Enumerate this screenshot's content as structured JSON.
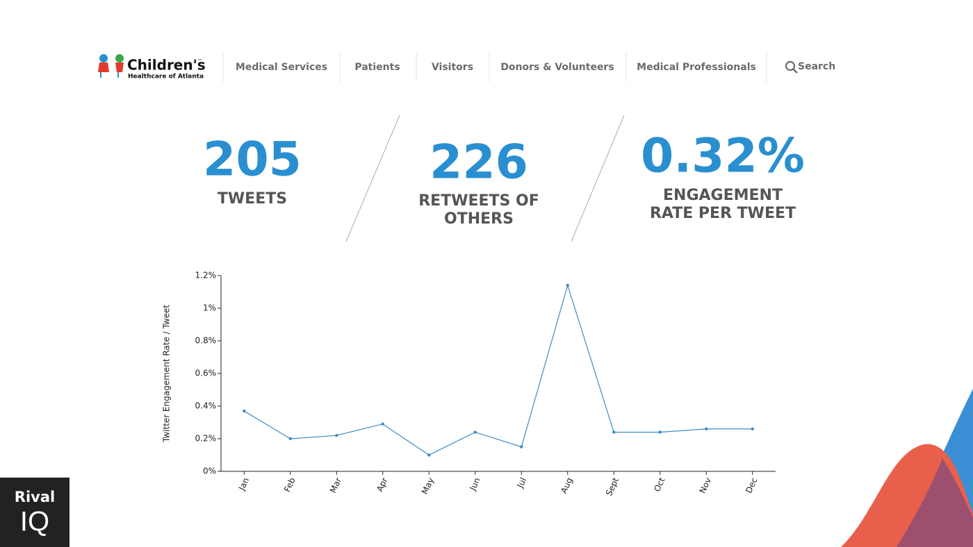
{
  "header": {
    "logo_name": "Children's",
    "logo_tm": "™",
    "logo_subtitle": "Healthcare of Atlanta",
    "nav": [
      "Medical Services",
      "Patients",
      "Visitors",
      "Donors & Volunteers",
      "Medical Professionals",
      "Search"
    ]
  },
  "stats": [
    {
      "value": "205",
      "lines": [
        "TWEETS"
      ]
    },
    {
      "value": "226",
      "lines": [
        "RETWEETS OF",
        "OTHERS"
      ]
    },
    {
      "value": "0.32%",
      "lines": [
        "ENGAGEMENT",
        "RATE PER TWEET"
      ]
    }
  ],
  "brand": {
    "line1": "Rival",
    "line2": "IQ"
  },
  "chart_data": {
    "type": "line",
    "y_label": "Twitter Engagement Rate / Tweet",
    "categories": [
      "Jan",
      "Feb",
      "Mar",
      "Apr",
      "May",
      "Jun",
      "Jul",
      "Aug",
      "Sept",
      "Oct",
      "Nov",
      "Dec"
    ],
    "values": [
      0.37,
      0.2,
      0.22,
      0.29,
      0.1,
      0.24,
      0.15,
      1.14,
      0.24,
      0.24,
      0.26,
      0.26
    ],
    "color": "#3d8bc6",
    "ylim": [
      0,
      1.2
    ],
    "yticks": [
      {
        "value": 0,
        "label": "0%"
      },
      {
        "value": 0.2,
        "label": "0.2%"
      },
      {
        "value": 0.4,
        "label": "0.4%"
      },
      {
        "value": 0.6,
        "label": "0.6%"
      },
      {
        "value": 0.8,
        "label": "0.8%"
      },
      {
        "value": 1,
        "label": "1%"
      },
      {
        "value": 1.2,
        "label": "1.2%"
      }
    ]
  }
}
